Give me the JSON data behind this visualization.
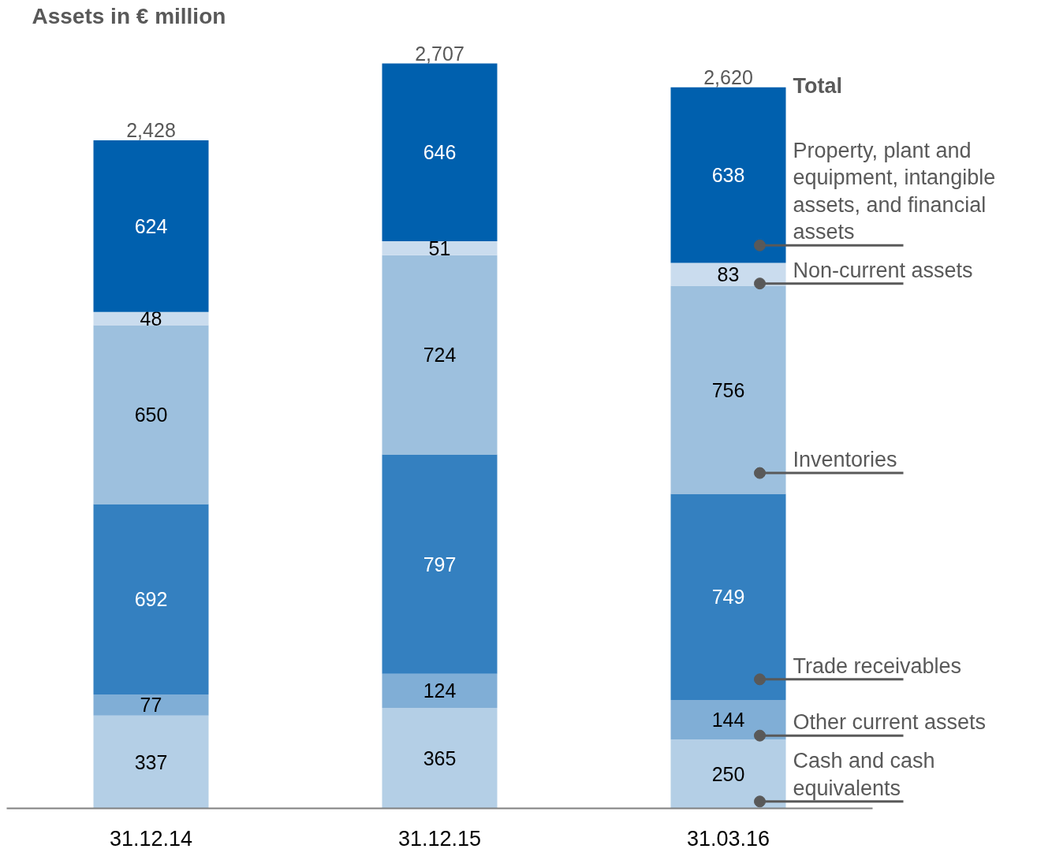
{
  "chart_data": {
    "type": "bar",
    "stacked": true,
    "title": "Assets in € million",
    "categories": [
      "31.12.14",
      "31.12.15",
      "31.03.16"
    ],
    "series": [
      {
        "name": "Cash and cash equivalents",
        "color": "#b4cfe6",
        "values": [
          337,
          365,
          250
        ]
      },
      {
        "name": "Other current assets",
        "color": "#80aed6",
        "values": [
          77,
          124,
          144
        ]
      },
      {
        "name": "Trade receivables",
        "color": "#3480c0",
        "values": [
          692,
          797,
          749
        ]
      },
      {
        "name": "Inventories",
        "color": "#9dc0de",
        "values": [
          650,
          724,
          756
        ]
      },
      {
        "name": "Non-current assets",
        "color": "#cadcee",
        "values": [
          48,
          51,
          83
        ]
      },
      {
        "name": "Property, plant and equipment, intangible assets, and financial assets",
        "color": "#0060ae",
        "values": [
          624,
          646,
          638
        ]
      }
    ],
    "totals": [
      "2,428",
      "2,707",
      "2,620"
    ],
    "legend_title": "Total",
    "data_labels": true,
    "legend": "right",
    "tick_labels": "x",
    "grid": false
  }
}
